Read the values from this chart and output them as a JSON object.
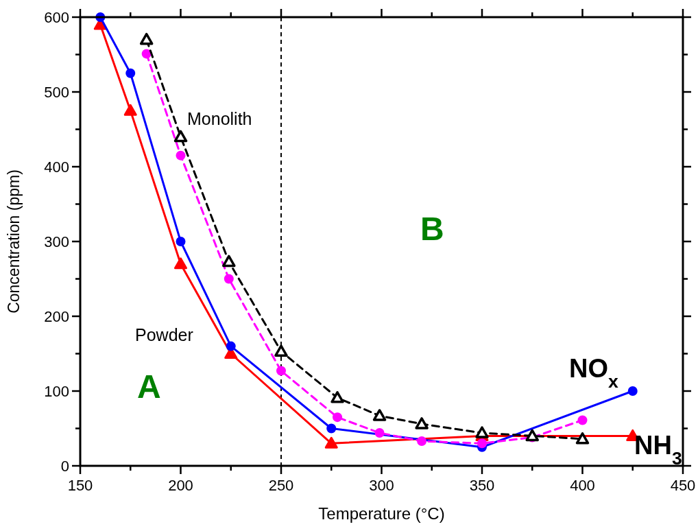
{
  "chart_data": {
    "type": "line",
    "xlabel": "Temperature (°C)",
    "ylabel": "Concentration (ppm)",
    "xlim": [
      150,
      450
    ],
    "ylim": [
      0,
      600
    ],
    "xticks": [
      150,
      {
        "value": 175,
        "label": null
      },
      200,
      {
        "value": 225,
        "label": null
      },
      250,
      {
        "value": 275,
        "label": null
      },
      300,
      {
        "value": 325,
        "label": null
      },
      350,
      {
        "value": 375,
        "label": null
      },
      400,
      {
        "value": 425,
        "label": null
      },
      450
    ],
    "yticks": [
      0,
      {
        "value": 50,
        "label": null
      },
      100,
      {
        "value": 150,
        "label": null
      },
      200,
      {
        "value": 250,
        "label": null
      },
      300,
      {
        "value": 350,
        "label": null
      },
      400,
      {
        "value": 450,
        "label": null
      },
      500,
      {
        "value": 550,
        "label": null
      },
      600
    ],
    "grid": false,
    "series": [
      {
        "color": "#ff0000",
        "marker": "triangle",
        "line_style": "solid",
        "x": [
          160,
          175,
          200,
          225,
          275,
          350,
          425
        ],
        "values": [
          590,
          475,
          270,
          150,
          30,
          40,
          40
        ]
      },
      {
        "color": "#0000ff",
        "marker": "circle",
        "line_style": "solid",
        "x": [
          160,
          175,
          200,
          225,
          275,
          350,
          425
        ],
        "values": [
          600,
          525,
          300,
          160,
          50,
          25,
          100
        ]
      },
      {
        "color": "#ff00ff",
        "marker": "circle",
        "line_style": "dashed",
        "x": [
          183,
          200,
          224,
          250,
          278,
          299,
          320,
          350,
          375,
          400
        ],
        "values": [
          551,
          415,
          250,
          127,
          65,
          44,
          33,
          30,
          38,
          61
        ]
      },
      {
        "color": "#000000",
        "marker": "triangle",
        "line_style": "dashed",
        "x": [
          183,
          200,
          224,
          250,
          278,
          299,
          320,
          350,
          375,
          400
        ],
        "values": [
          570,
          440,
          273,
          153,
          91,
          67,
          56,
          44,
          40,
          36
        ]
      }
    ],
    "ref_lines": [
      {
        "axis": "x",
        "value": 250,
        "color": "#000000",
        "line_style": "dashed"
      }
    ],
    "annotations": [
      "Monolith",
      "Powder",
      "A",
      "B",
      "NO$_{x}$",
      "NH$_{3}$"
    ]
  }
}
